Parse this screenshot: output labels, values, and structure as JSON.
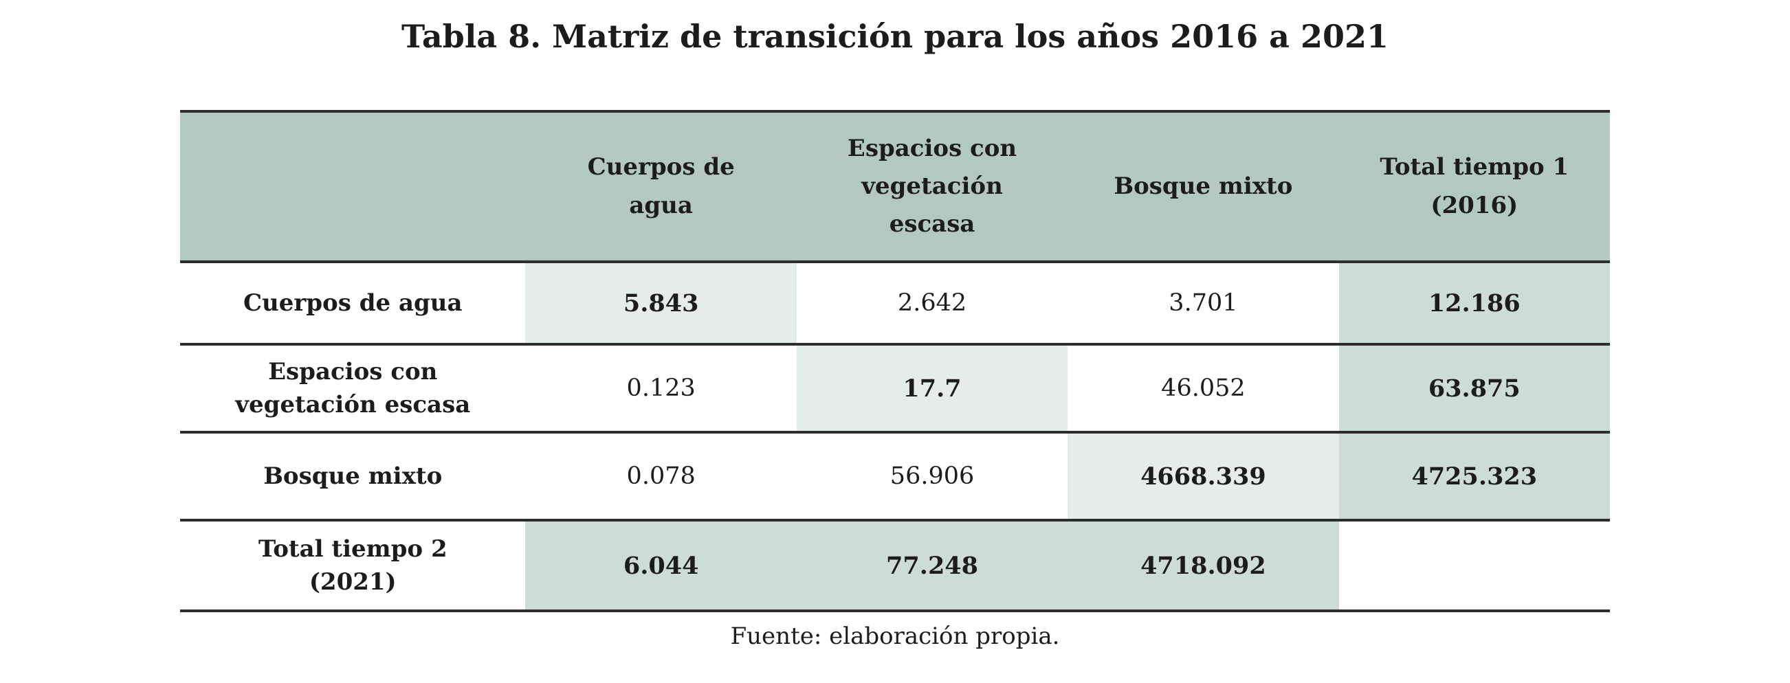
{
  "title": "Tabla 8. Matriz de transición para los años 2016 a 2021",
  "source_note": "Fuente: elaboración propia.",
  "colors": {
    "header_bg": "#b2c8c0",
    "diagonal_cell_bg": "#e5ede9",
    "total_cell_bg": "#cedcd6",
    "rule": "#2d2d2d",
    "text": "#1c1c1c",
    "page_bg": "#ffffff"
  },
  "table": {
    "corner_label": "",
    "column_headers": [
      "Cuerpos de\nagua",
      "Espacios con\nvegetación\nescasa",
      "Bosque mixto",
      "Total tiempo 1\n(2016)"
    ],
    "rows": [
      {
        "label": "Cuerpos de agua",
        "values": [
          "5.843",
          "2.642",
          "3.701",
          "12.186"
        ]
      },
      {
        "label": "Espacios con\nvegetación escasa",
        "values": [
          "0.123",
          "17.7",
          "46.052",
          "63.875"
        ]
      },
      {
        "label": "Bosque mixto",
        "values": [
          "0.078",
          "56.906",
          "4668.339",
          "4725.323"
        ]
      },
      {
        "label": "Total tiempo 2\n(2021)",
        "values": [
          "6.044",
          "77.248",
          "4718.092",
          ""
        ]
      }
    ]
  },
  "chart_data": {
    "type": "table",
    "title": "Tabla 8. Matriz de transición para los años 2016 a 2021",
    "columns": [
      "",
      "Cuerpos de agua",
      "Espacios con vegetación escasa",
      "Bosque mixto",
      "Total tiempo 1 (2016)"
    ],
    "rows": [
      [
        "Cuerpos de agua",
        5.843,
        2.642,
        3.701,
        12.186
      ],
      [
        "Espacios con vegetación escasa",
        0.123,
        17.7,
        46.052,
        63.875
      ],
      [
        "Bosque mixto",
        0.078,
        56.906,
        4668.339,
        4725.323
      ],
      [
        "Total tiempo 2 (2021)",
        6.044,
        77.248,
        4718.092,
        null
      ]
    ],
    "notes": "Diagonal cells and totals rendered bold on green backgrounds; source note below table."
  }
}
